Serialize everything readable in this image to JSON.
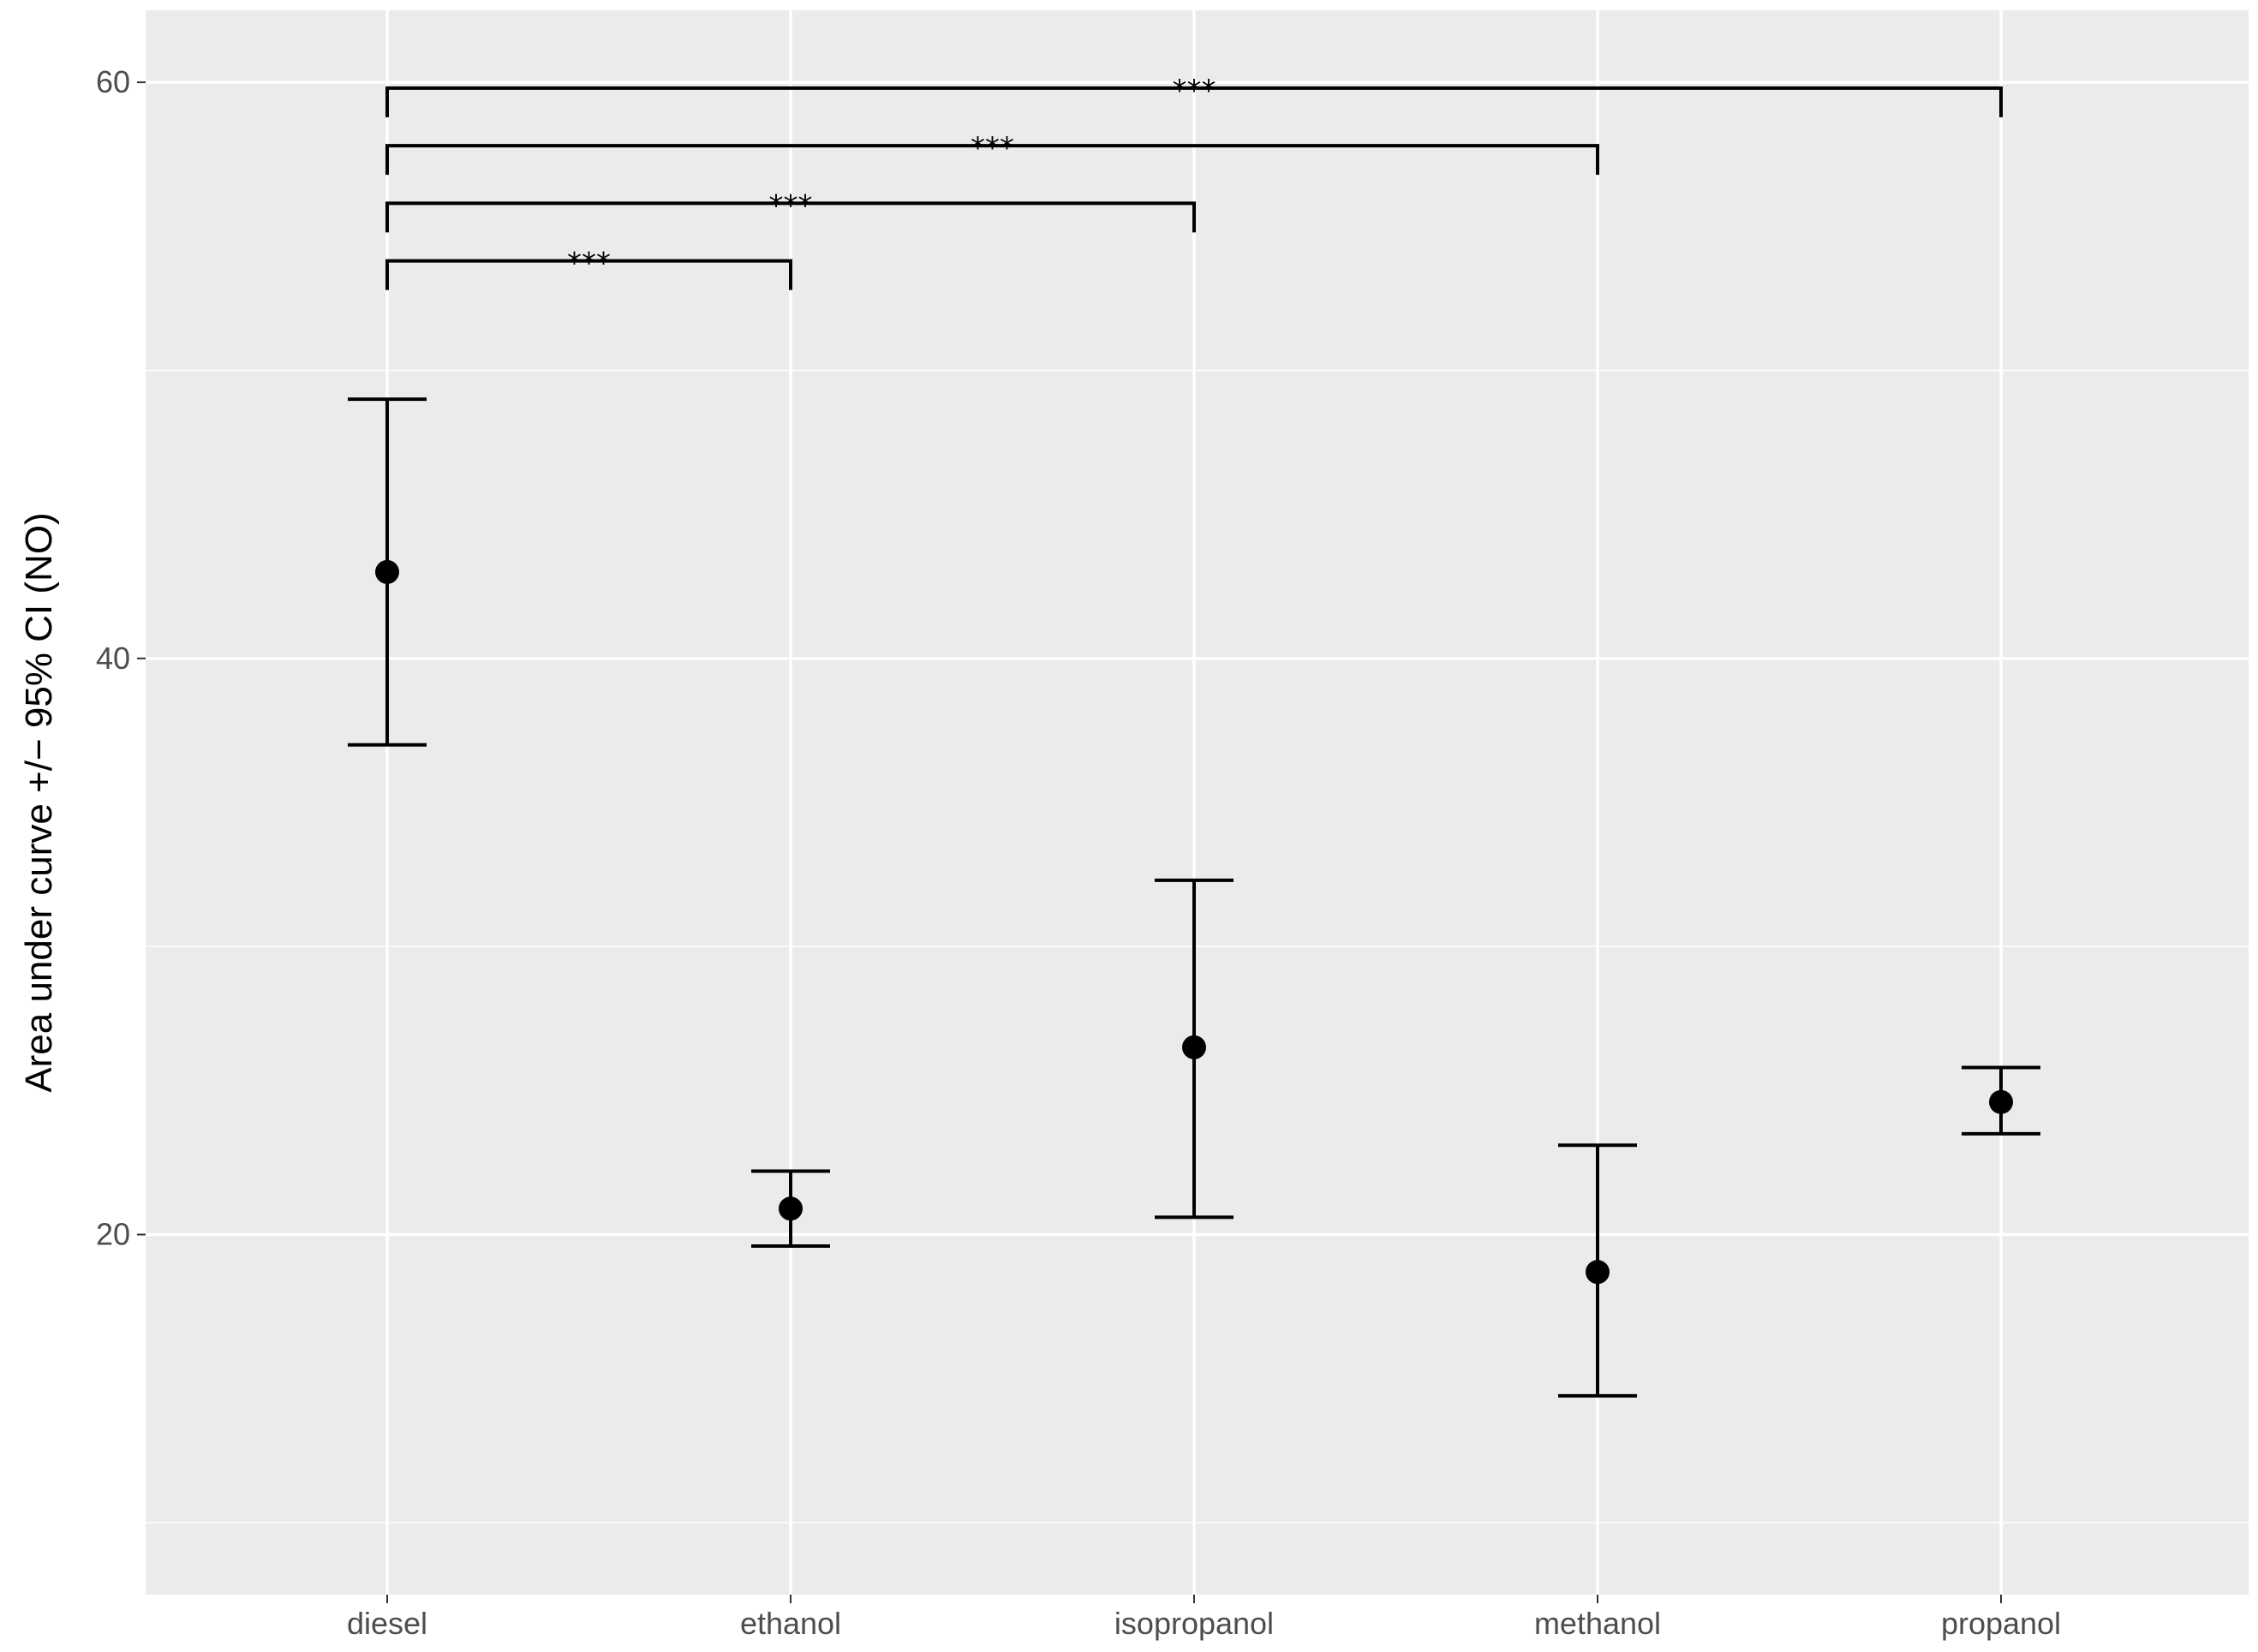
{
  "chart_data": {
    "type": "scatter",
    "title": "",
    "xlabel": "",
    "ylabel": "Area under curve +/− 95% CI (NO)",
    "categories": [
      "diesel",
      "ethanol",
      "isopropanol",
      "methanol",
      "propanol"
    ],
    "ylim": [
      7.5,
      62.5
    ],
    "yticks": [
      20,
      40,
      60
    ],
    "grid": true,
    "points": [
      {
        "category": "diesel",
        "mean": 43.0,
        "lower": 37.0,
        "upper": 49.0
      },
      {
        "category": "ethanol",
        "mean": 20.9,
        "lower": 19.6,
        "upper": 22.2
      },
      {
        "category": "isopropanol",
        "mean": 26.5,
        "lower": 20.6,
        "upper": 32.3
      },
      {
        "category": "methanol",
        "mean": 18.7,
        "lower": 14.4,
        "upper": 23.1
      },
      {
        "category": "propanol",
        "mean": 24.6,
        "lower": 23.5,
        "upper": 25.8
      }
    ],
    "comparisons": [
      {
        "from": "diesel",
        "to": "ethanol",
        "label": "***",
        "y": 53.8
      },
      {
        "from": "diesel",
        "to": "isopropanol",
        "label": "***",
        "y": 55.8
      },
      {
        "from": "diesel",
        "to": "methanol",
        "label": "***",
        "y": 57.8
      },
      {
        "from": "diesel",
        "to": "propanol",
        "label": "***",
        "y": 59.8
      }
    ],
    "colors": {
      "panel_background": "#ebebeb",
      "grid": "#ffffff",
      "marks": "#000000",
      "tick_text": "#4d4d4d"
    }
  }
}
